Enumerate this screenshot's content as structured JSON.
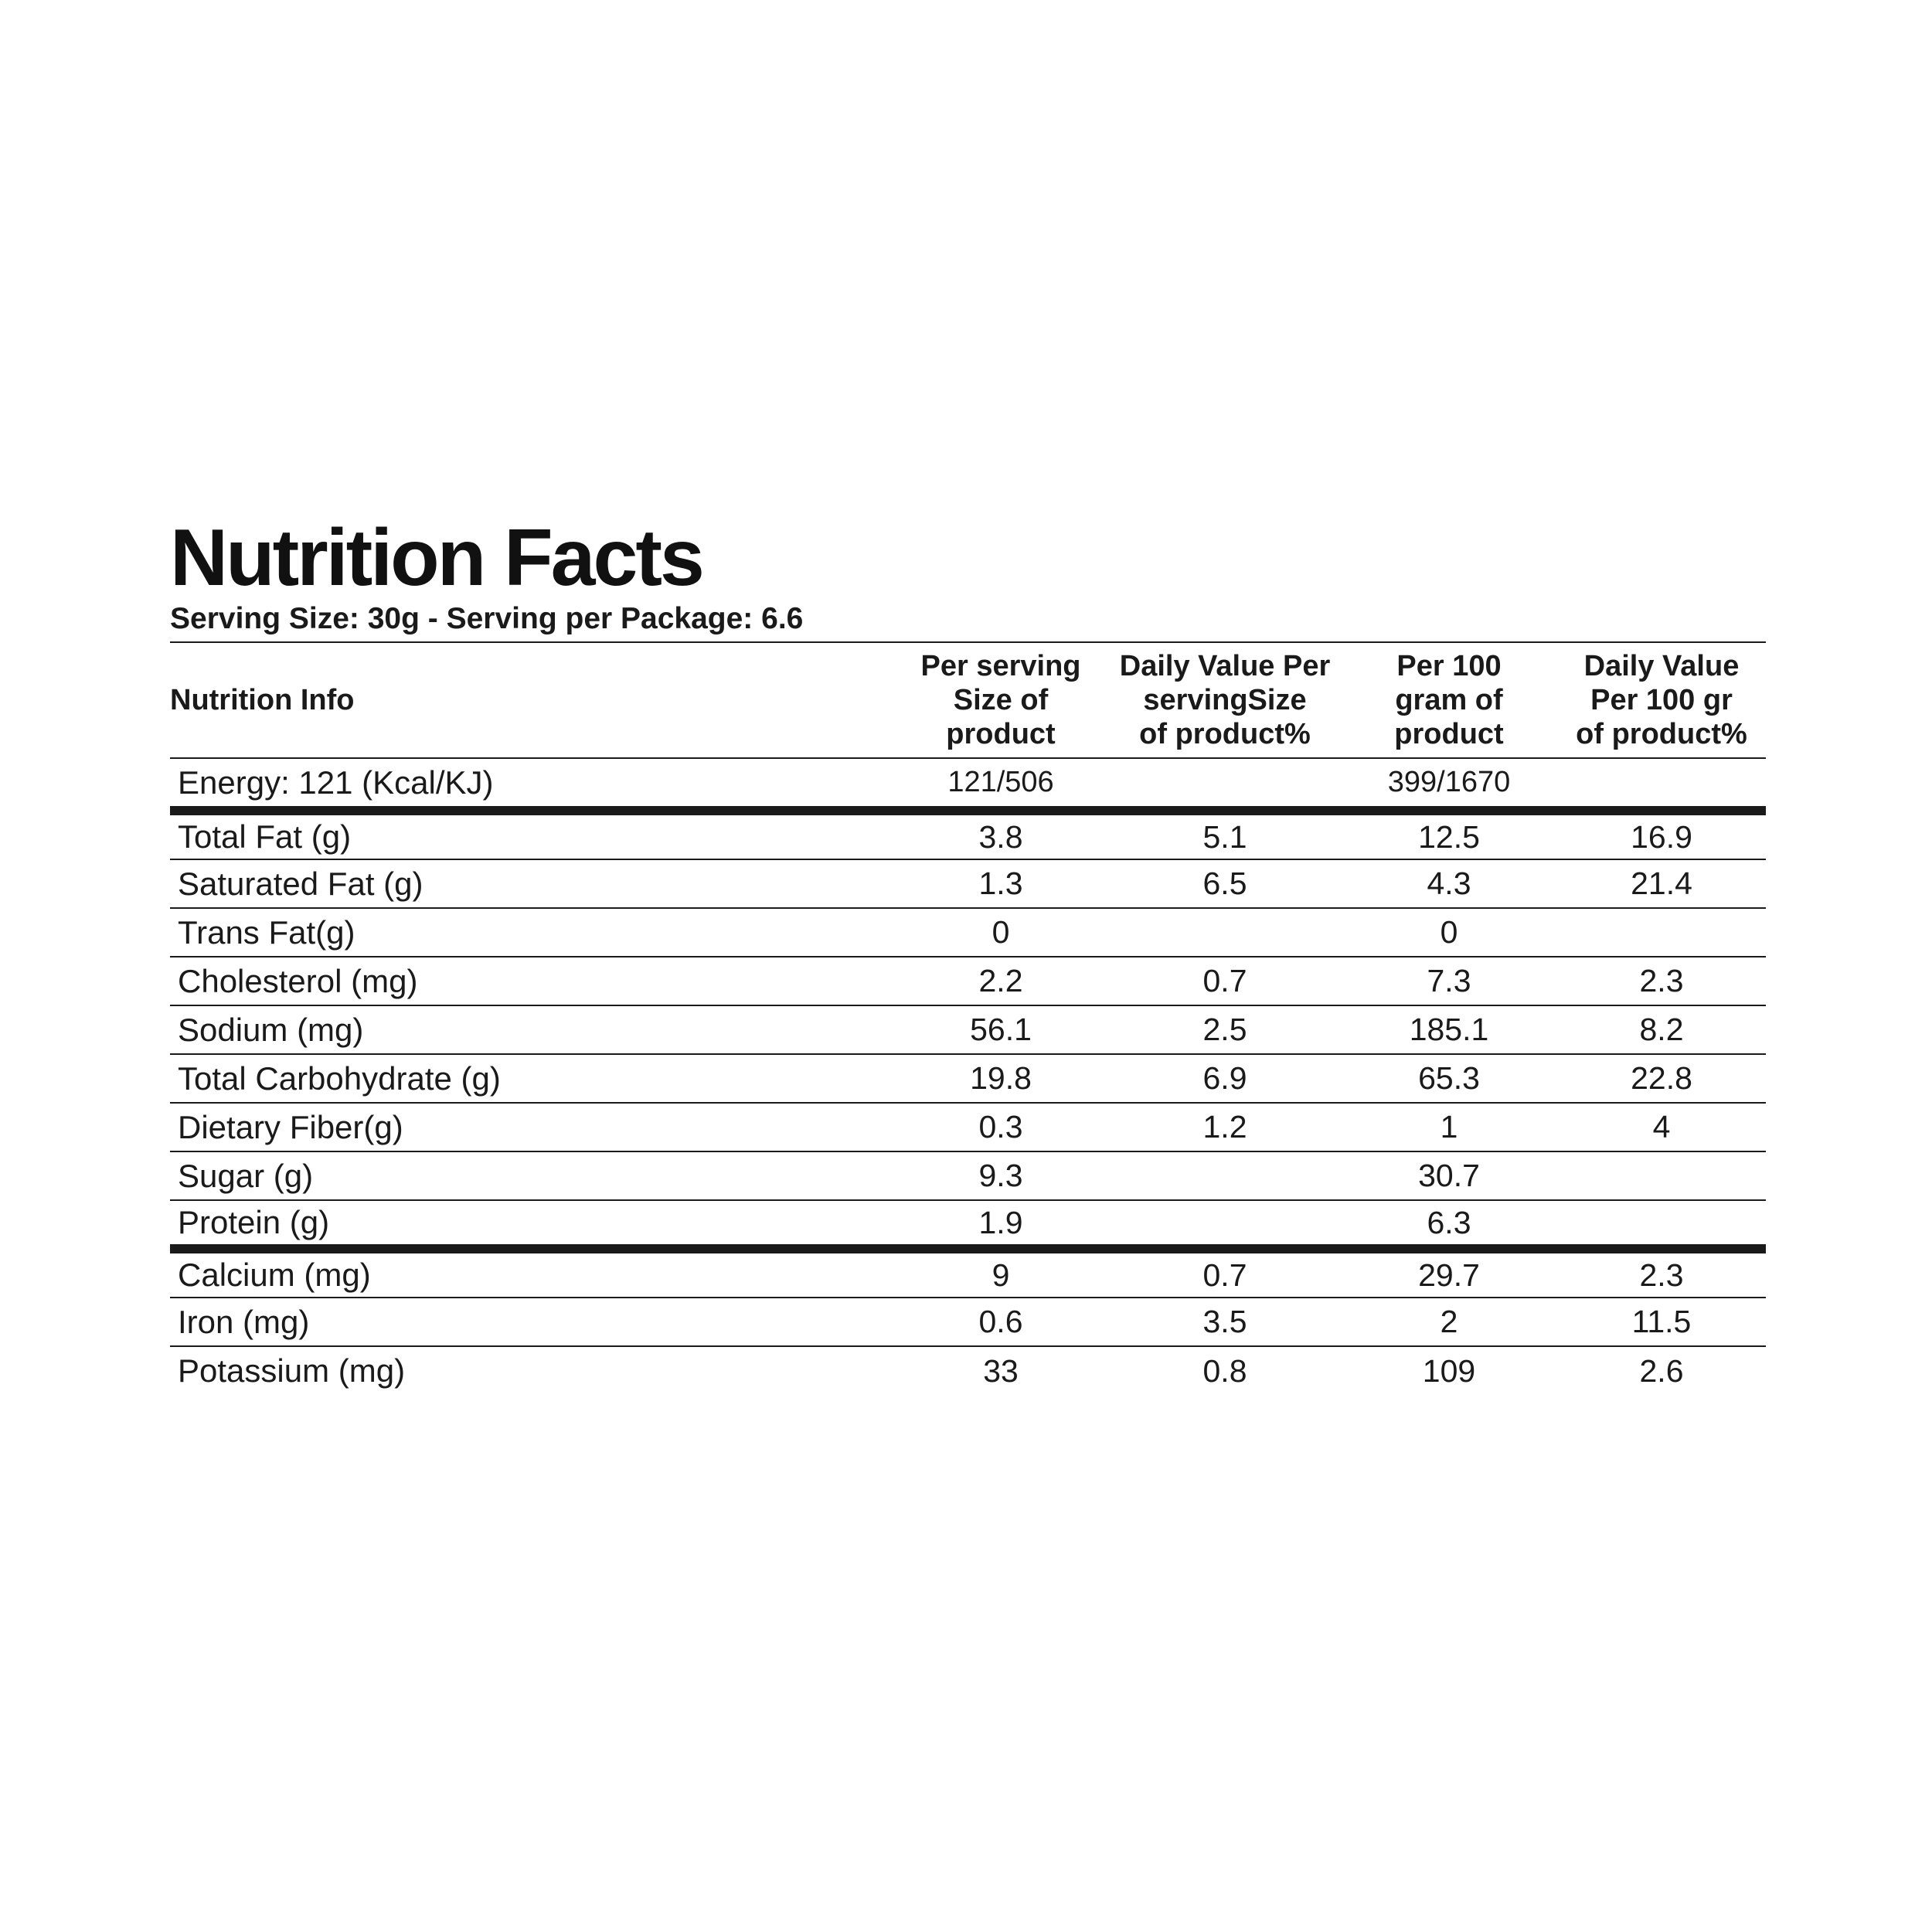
{
  "title": "Nutrition Facts",
  "serving_line": "Serving Size: 30g - Serving per Package: 6.6",
  "headers": {
    "col0": "Nutrition Info",
    "col1": [
      "Per serving",
      "Size of",
      "product"
    ],
    "col2": [
      "Daily Value Per",
      "servingSize",
      "of product%"
    ],
    "col3": [
      "Per 100",
      "gram of",
      "product"
    ],
    "col4": [
      "Daily Value",
      "Per 100 gr",
      "of product%"
    ]
  },
  "rows": [
    {
      "name": "Energy: 121 (Kcal/KJ)",
      "per_serving": "121/506",
      "dv_serving": "",
      "per_100g": "399/1670",
      "dv_100g": ""
    },
    {
      "name": "Total Fat (g)",
      "per_serving": "3.8",
      "dv_serving": "5.1",
      "per_100g": "12.5",
      "dv_100g": "16.9"
    },
    {
      "name": "Saturated Fat (g)",
      "per_serving": "1.3",
      "dv_serving": "6.5",
      "per_100g": "4.3",
      "dv_100g": "21.4"
    },
    {
      "name": "Trans Fat(g)",
      "per_serving": "0",
      "dv_serving": "",
      "per_100g": "0",
      "dv_100g": ""
    },
    {
      "name": "Cholesterol (mg)",
      "per_serving": "2.2",
      "dv_serving": "0.7",
      "per_100g": "7.3",
      "dv_100g": "2.3"
    },
    {
      "name": "Sodium (mg)",
      "per_serving": "56.1",
      "dv_serving": "2.5",
      "per_100g": "185.1",
      "dv_100g": "8.2"
    },
    {
      "name": "Total Carbohydrate (g)",
      "per_serving": "19.8",
      "dv_serving": "6.9",
      "per_100g": "65.3",
      "dv_100g": "22.8"
    },
    {
      "name": "Dietary Fiber(g)",
      "per_serving": "0.3",
      "dv_serving": "1.2",
      "per_100g": "1",
      "dv_100g": "4"
    },
    {
      "name": "Sugar (g)",
      "per_serving": "9.3",
      "dv_serving": "",
      "per_100g": "30.7",
      "dv_100g": ""
    },
    {
      "name": "Protein (g)",
      "per_serving": "1.9",
      "dv_serving": "",
      "per_100g": "6.3",
      "dv_100g": ""
    },
    {
      "name": "Calcium (mg)",
      "per_serving": "9",
      "dv_serving": "0.7",
      "per_100g": "29.7",
      "dv_100g": "2.3"
    },
    {
      "name": "Iron (mg)",
      "per_serving": "0.6",
      "dv_serving": "3.5",
      "per_100g": "2",
      "dv_100g": "11.5"
    },
    {
      "name": "Potassium (mg)",
      "per_serving": "33",
      "dv_serving": "0.8",
      "per_100g": "109",
      "dv_100g": "2.6"
    }
  ]
}
